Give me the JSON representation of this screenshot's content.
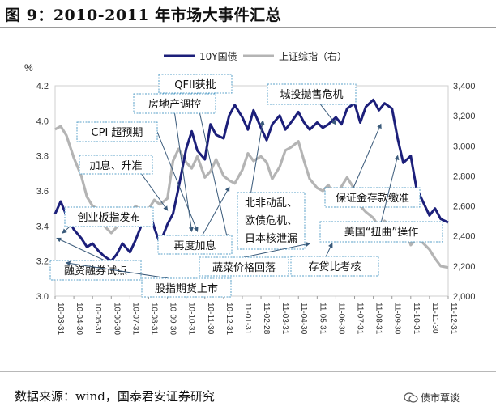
{
  "figure": {
    "title": "图 9：2010-2011 年市场大事件汇总",
    "source": "数据来源：wind，国泰君安证券研究",
    "brand": "债市覃谈"
  },
  "colors": {
    "bond_line": "#1c1f7a",
    "index_line": "#b4b4b4",
    "annotation_border": "#5aa0c8",
    "arrow": "#3a5a7a"
  },
  "chart_data": {
    "type": "line",
    "left_unit": "%",
    "left_ylim": [
      3.0,
      4.2
    ],
    "left_ticks": [
      "3.0",
      "3.2",
      "3.4",
      "3.6",
      "3.8",
      "4.0",
      "4.2"
    ],
    "right_ylim": [
      2000,
      3400
    ],
    "right_ticks": [
      "2,000",
      "2,200",
      "2,400",
      "2,600",
      "2,800",
      "3,000",
      "3,200",
      "3,400"
    ],
    "x_ticks": [
      "10-03-31",
      "10-04-30",
      "10-05-31",
      "10-06-30",
      "10-07-31",
      "10-08-31",
      "10-09-30",
      "10-10-31",
      "10-11-30",
      "10-12-31",
      "11-01-31",
      "11-02-28",
      "11-03-31",
      "11-04-30",
      "11-05-31",
      "11-06-30",
      "11-07-31",
      "11-08-31",
      "11-09-30",
      "11-10-31",
      "11-11-30",
      "11-12-31"
    ],
    "series": [
      {
        "name": "10Y国债",
        "axis": "left",
        "x": [
          0.0,
          0.3,
          0.6,
          1.0,
          1.4,
          1.7,
          2.0,
          2.3,
          2.6,
          3.0,
          3.3,
          3.6,
          4.0,
          4.3,
          4.6,
          5.0,
          5.3,
          5.6,
          6.0,
          6.3,
          6.6,
          7.0,
          7.3,
          7.6,
          8.0,
          8.3,
          8.6,
          9.0,
          9.3,
          9.6,
          10.0,
          10.3,
          10.6,
          11.0,
          11.3,
          11.6,
          12.0,
          12.3,
          12.6,
          13.0,
          13.3,
          13.6,
          14.0,
          14.3,
          14.6,
          15.0,
          15.3,
          15.6,
          16.0,
          16.3,
          16.6,
          17.0,
          17.3,
          17.6,
          18.0,
          18.3,
          18.6,
          19.0,
          19.3,
          19.6,
          20.0,
          20.3,
          20.6,
          21.0
        ],
        "values": [
          3.47,
          3.54,
          3.46,
          3.38,
          3.33,
          3.28,
          3.3,
          3.26,
          3.23,
          3.2,
          3.24,
          3.3,
          3.25,
          3.32,
          3.4,
          3.5,
          3.39,
          3.3,
          3.41,
          3.47,
          3.62,
          3.84,
          3.94,
          3.83,
          3.78,
          3.98,
          3.92,
          3.9,
          4.03,
          4.09,
          4.02,
          3.95,
          4.06,
          3.96,
          3.89,
          3.98,
          4.03,
          3.95,
          3.99,
          4.05,
          3.99,
          3.95,
          3.99,
          3.96,
          3.98,
          4.02,
          3.98,
          4.07,
          4.1,
          3.99,
          4.08,
          4.12,
          4.06,
          4.1,
          4.07,
          3.9,
          3.76,
          3.8,
          3.62,
          3.55,
          3.46,
          3.5,
          3.44,
          3.42
        ]
      },
      {
        "name": "上证综指（右）",
        "axis": "right",
        "x": [
          0.0,
          0.3,
          0.6,
          1.0,
          1.4,
          1.7,
          2.0,
          2.3,
          2.6,
          3.0,
          3.3,
          3.6,
          4.0,
          4.3,
          4.6,
          5.0,
          5.3,
          5.6,
          6.0,
          6.3,
          6.6,
          7.0,
          7.3,
          7.6,
          8.0,
          8.3,
          8.6,
          9.0,
          9.3,
          9.6,
          10.0,
          10.3,
          10.6,
          11.0,
          11.3,
          11.6,
          12.0,
          12.3,
          12.6,
          13.0,
          13.3,
          13.6,
          14.0,
          14.3,
          14.6,
          15.0,
          15.3,
          15.6,
          16.0,
          16.3,
          16.6,
          17.0,
          17.3,
          17.6,
          18.0,
          18.3,
          18.6,
          19.0,
          19.3,
          19.6,
          20.0,
          20.3,
          20.6,
          21.0
        ],
        "values": [
          3110,
          3130,
          3070,
          2920,
          2800,
          2660,
          2600,
          2580,
          2470,
          2420,
          2460,
          2530,
          2550,
          2600,
          2570,
          2580,
          2640,
          2610,
          2650,
          2900,
          2980,
          2890,
          2850,
          2930,
          2790,
          2830,
          2910,
          2800,
          2770,
          2750,
          2840,
          2950,
          2900,
          2930,
          2890,
          2780,
          2860,
          2970,
          2990,
          3030,
          2900,
          2780,
          2720,
          2700,
          2740,
          2630,
          2730,
          2790,
          2710,
          2600,
          2560,
          2520,
          2460,
          2500,
          2460,
          2420,
          2490,
          2340,
          2380,
          2360,
          2310,
          2250,
          2200,
          2190
        ]
      }
    ],
    "annotations": [
      {
        "text": "QFII获批",
        "x": 9.2,
        "y": 3.33
      },
      {
        "text": "房地产调控",
        "x": 7.3,
        "y": 3.37
      },
      {
        "text": "CPI 超预期",
        "x": 7.6,
        "y": 3.37
      },
      {
        "text": "加息、升准",
        "x": 6.0,
        "y": 3.49
      },
      {
        "text": "创业板指发布",
        "x": 0.4,
        "y": 3.36
      },
      {
        "text": "融资融券试点",
        "x": 0.1,
        "y": 3.33
      },
      {
        "text": "股指期货上市",
        "x": 0.6,
        "y": 3.19
      },
      {
        "text": "再度加息",
        "x": 9.3,
        "y": 3.62
      },
      {
        "text": "北非动乱、欧债危机、日本核泄漏",
        "x": 11.1,
        "y": 4.0
      },
      {
        "text": "蔬菜价格回落",
        "x": 13.6,
        "y": 3.3
      },
      {
        "text": "城投抛售危机",
        "x": 15.0,
        "y": 3.98
      },
      {
        "text": "存贷比考核",
        "x": 14.8,
        "y": 3.3
      },
      {
        "text": "保证金存款缴准",
        "x": 17.4,
        "y": 3.98
      },
      {
        "text": "美国“扭曲”操作",
        "x": 18.3,
        "y": 3.8
      }
    ]
  }
}
